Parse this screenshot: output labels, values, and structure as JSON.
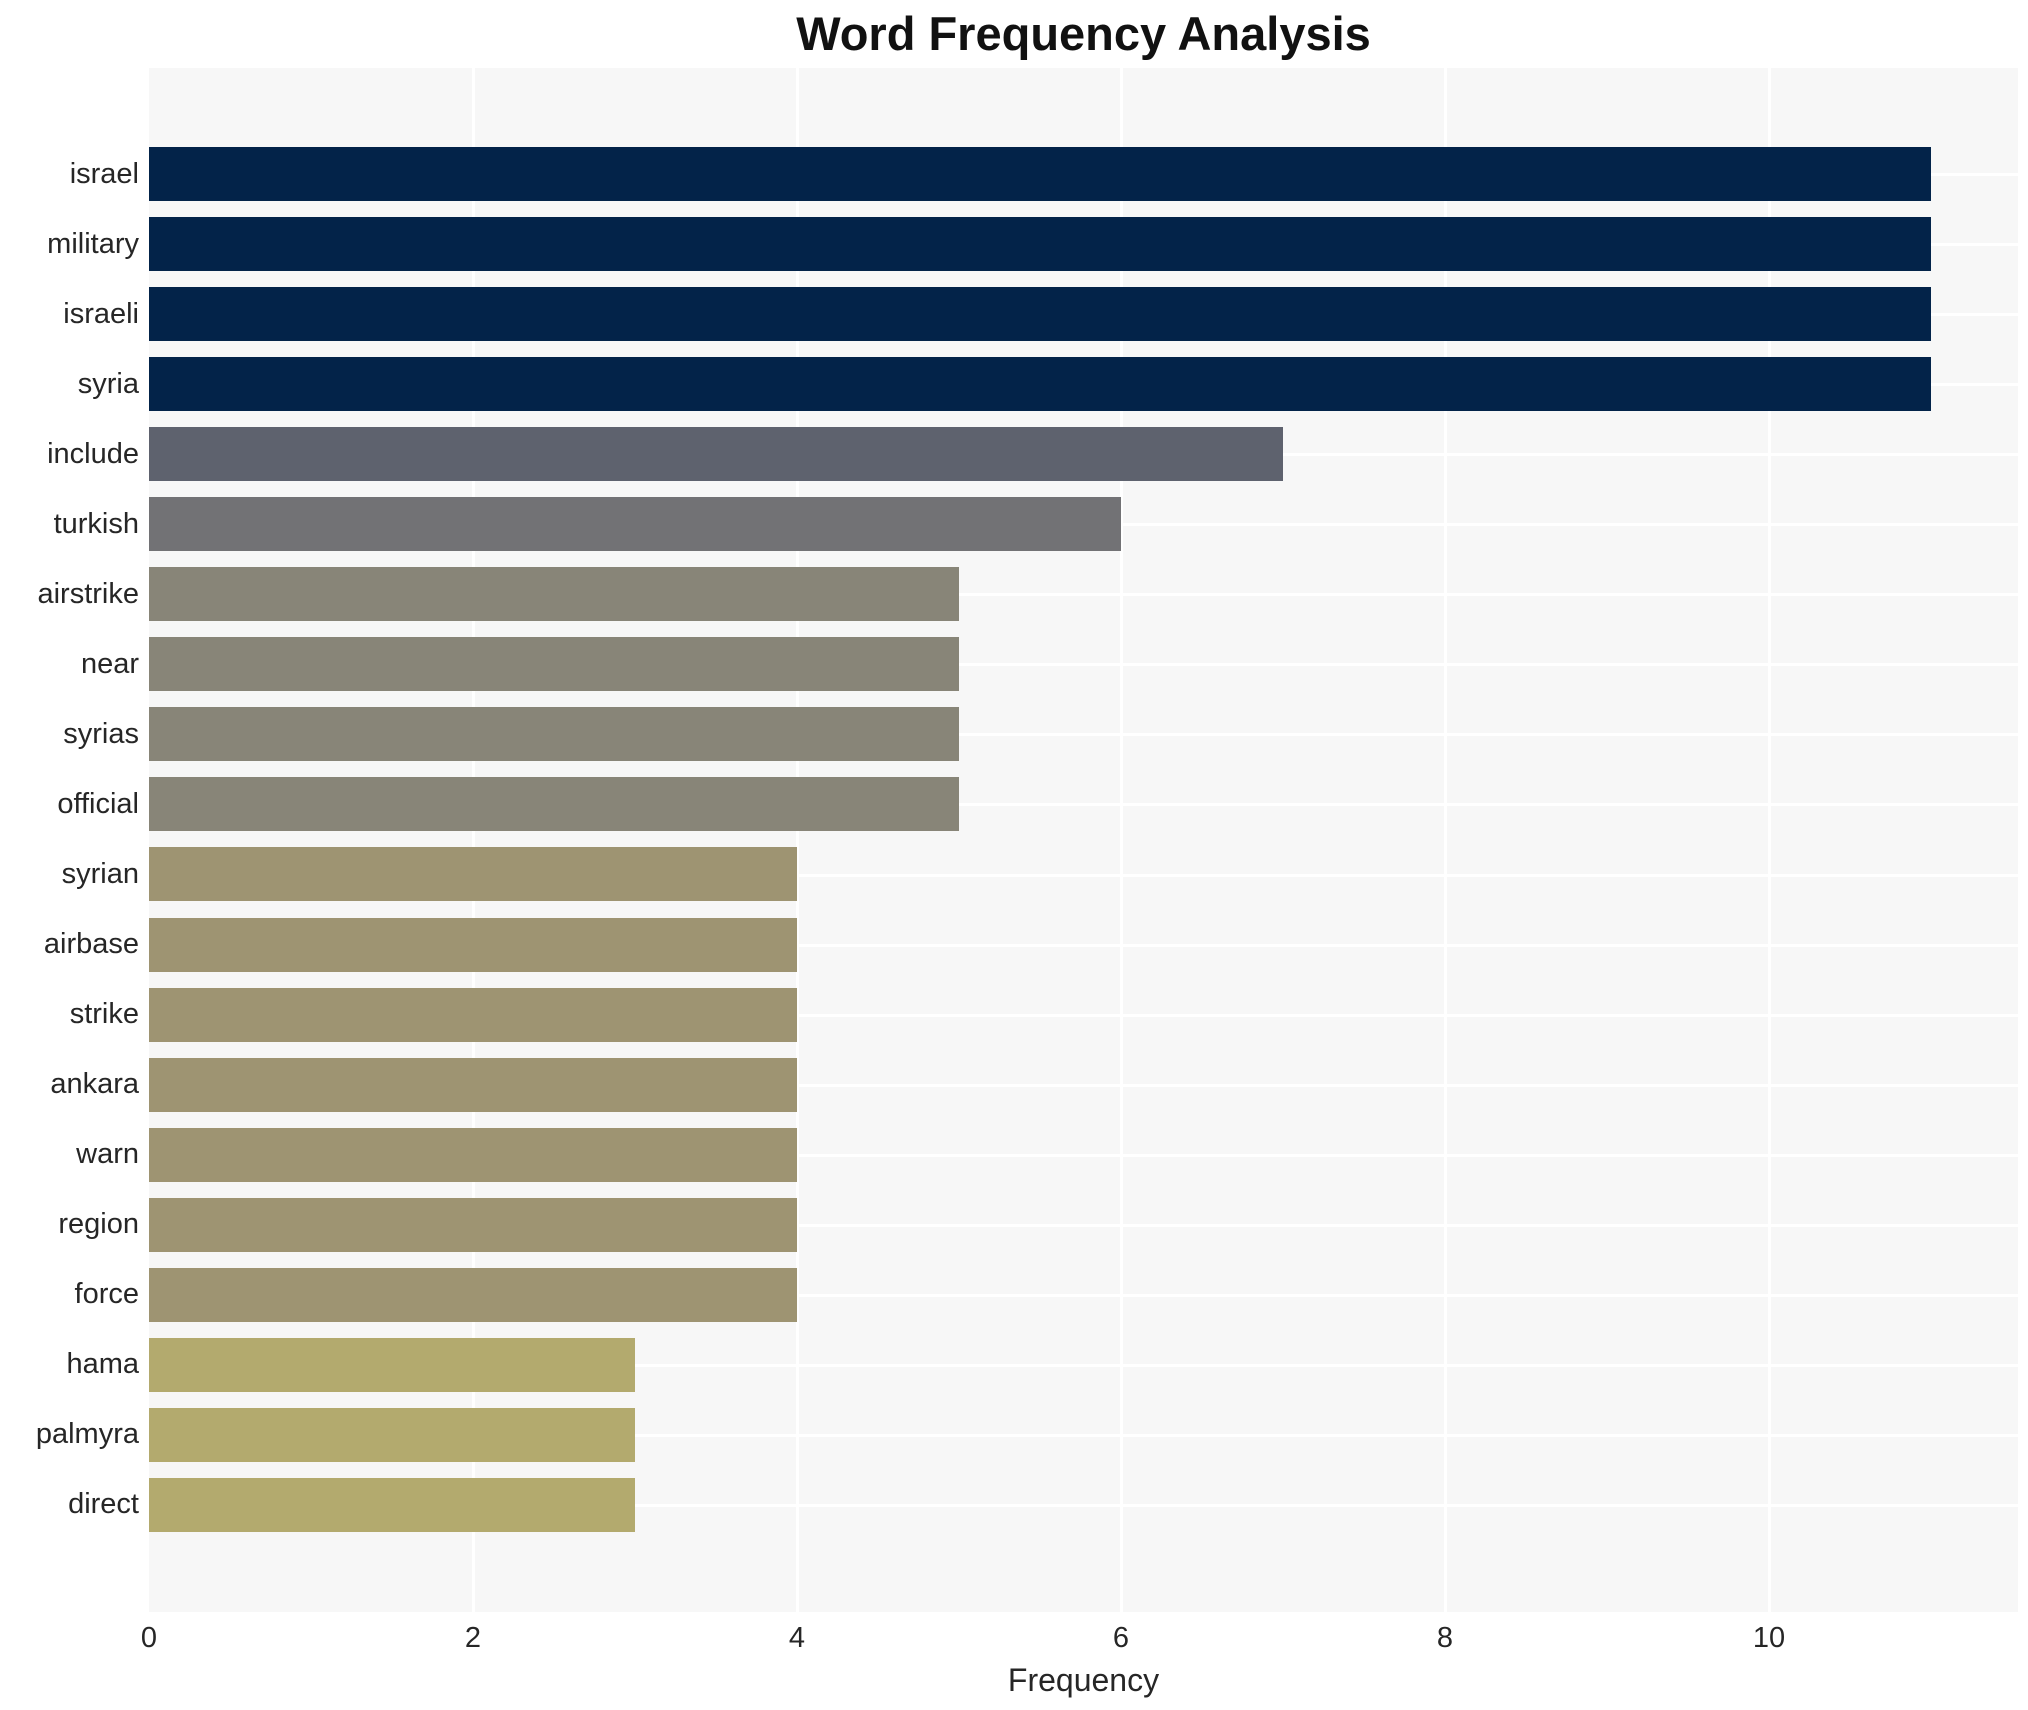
{
  "title": "Word Frequency Analysis",
  "chart_data": {
    "type": "bar",
    "orientation": "horizontal",
    "title": "Word Frequency Analysis",
    "xlabel": "Frequency",
    "ylabel": "",
    "categories": [
      "israel",
      "military",
      "israeli",
      "syria",
      "include",
      "turkish",
      "airstrike",
      "near",
      "syrias",
      "official",
      "syrian",
      "airbase",
      "strike",
      "ankara",
      "warn",
      "region",
      "force",
      "hama",
      "palmyra",
      "direct"
    ],
    "values": [
      11,
      11,
      11,
      11,
      7,
      6,
      5,
      5,
      5,
      5,
      4,
      4,
      4,
      4,
      4,
      4,
      4,
      3,
      3,
      3
    ],
    "bar_colors": [
      "#032349",
      "#032349",
      "#032349",
      "#032349",
      "#5e626e",
      "#727275",
      "#888578",
      "#888578",
      "#888578",
      "#888578",
      "#9e9472",
      "#9e9472",
      "#9e9472",
      "#9e9472",
      "#9e9472",
      "#9e9472",
      "#9e9472",
      "#b3aa6e",
      "#b3aa6e",
      "#b3aa6e"
    ],
    "x_ticks": [
      0,
      2,
      4,
      6,
      8,
      10
    ],
    "xlim": [
      0,
      11.537
    ],
    "grid": "on",
    "legend": "none",
    "plot_background": "#f7f7f7",
    "gridline_color": "#ffffff",
    "title_color": "#111111",
    "axis_text_color": "#262626"
  }
}
